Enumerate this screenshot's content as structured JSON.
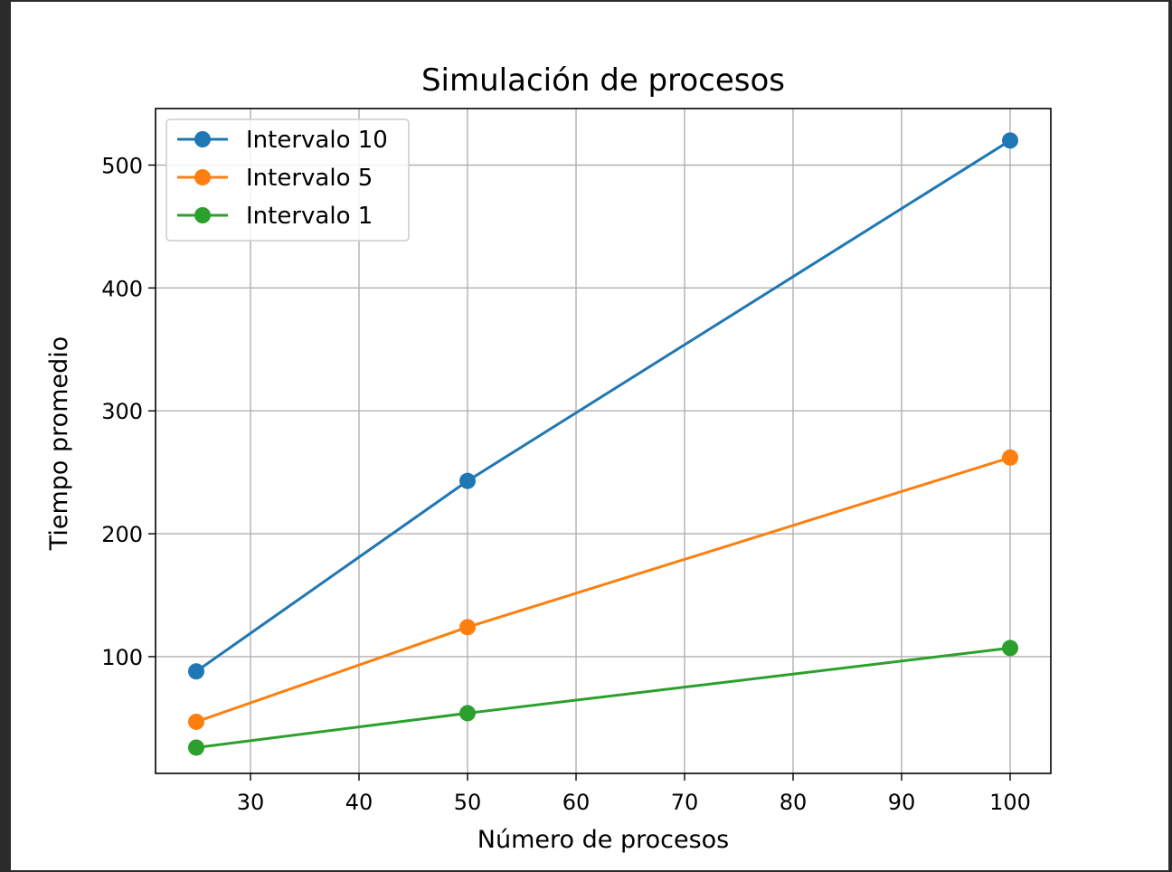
{
  "chart_data": {
    "type": "line",
    "title": "Simulación de procesos",
    "xlabel": "Número de procesos",
    "ylabel": "Tiempo promedio",
    "x": [
      25,
      50,
      100
    ],
    "xlim": [
      21.25,
      103.75
    ],
    "ylim": [
      5,
      546
    ],
    "xticks": [
      30,
      40,
      50,
      60,
      70,
      80,
      90,
      100
    ],
    "yticks": [
      100,
      200,
      300,
      400,
      500
    ],
    "grid": true,
    "legend_position": "top-left",
    "series": [
      {
        "name": "Intervalo 10",
        "color": "#1f77b4",
        "values": [
          88,
          243,
          520
        ]
      },
      {
        "name": "Intervalo 5",
        "color": "#ff7f0e",
        "values": [
          47,
          124,
          262
        ]
      },
      {
        "name": "Intervalo 1",
        "color": "#2ca02c",
        "values": [
          26,
          54,
          107
        ]
      }
    ]
  }
}
